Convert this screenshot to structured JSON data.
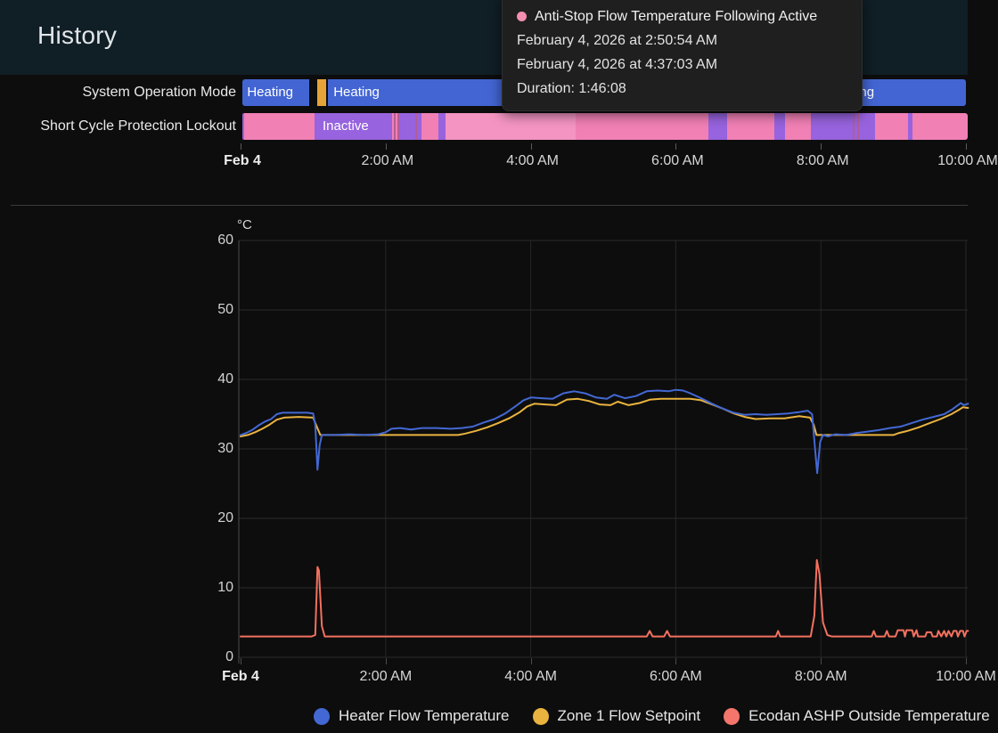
{
  "header": {
    "title": "History"
  },
  "tooltip": {
    "title": "Anti-Stop Flow Temperature Following Active",
    "dot_color": "#f48fb1",
    "start_time": "February 4, 2026 at 2:50:54 AM",
    "end_time": "February 4, 2026 at 4:37:03 AM",
    "duration": "Duration: 1:46:08"
  },
  "state_colors": {
    "blue": "#4365d3",
    "orange": "#e5a339",
    "pink": "#f180b5",
    "pink_light": "#f494c3",
    "purple": "#9763de",
    "mauve": "#b25d97"
  },
  "timeline": {
    "rows": [
      {
        "label": "System Operation Mode",
        "segments": [
          {
            "start_h": 0.02,
            "end_h": 0.95,
            "color": "blue"
          },
          {
            "start_h": 1.06,
            "end_h": 1.18,
            "color": "orange"
          },
          {
            "start_h": 1.2,
            "end_h": 10.0,
            "color": "blue"
          }
        ],
        "labels": [
          {
            "text": "Heating",
            "offset_h": 0.09
          },
          {
            "text": "Heating",
            "offset_h": 1.28
          },
          {
            "text": "Heating",
            "offset_h": 8.1
          }
        ]
      },
      {
        "label": "Short Cycle Protection Lockout",
        "segments": [
          {
            "start_h": 0.02,
            "end_h": 0.05,
            "color": "purple"
          },
          {
            "start_h": 0.05,
            "end_h": 1.02,
            "color": "pink"
          },
          {
            "start_h": 1.02,
            "end_h": 2.09,
            "color": "purple"
          },
          {
            "start_h": 2.09,
            "end_h": 2.11,
            "color": "pink"
          },
          {
            "start_h": 2.11,
            "end_h": 2.14,
            "color": "mauve"
          },
          {
            "start_h": 2.14,
            "end_h": 2.16,
            "color": "pink"
          },
          {
            "start_h": 2.16,
            "end_h": 2.19,
            "color": "mauve"
          },
          {
            "start_h": 2.19,
            "end_h": 2.41,
            "color": "purple"
          },
          {
            "start_h": 2.41,
            "end_h": 2.43,
            "color": "mauve"
          },
          {
            "start_h": 2.43,
            "end_h": 2.49,
            "color": "purple"
          },
          {
            "start_h": 2.49,
            "end_h": 2.73,
            "color": "pink"
          },
          {
            "start_h": 2.73,
            "end_h": 2.83,
            "color": "purple"
          },
          {
            "start_h": 2.83,
            "end_h": 4.62,
            "color": "pink_light"
          },
          {
            "start_h": 4.62,
            "end_h": 6.45,
            "color": "pink"
          },
          {
            "start_h": 6.45,
            "end_h": 6.71,
            "color": "purple"
          },
          {
            "start_h": 6.71,
            "end_h": 7.36,
            "color": "pink"
          },
          {
            "start_h": 7.36,
            "end_h": 7.51,
            "color": "purple"
          },
          {
            "start_h": 7.51,
            "end_h": 7.86,
            "color": "pink"
          },
          {
            "start_h": 7.86,
            "end_h": 8.44,
            "color": "purple"
          },
          {
            "start_h": 8.44,
            "end_h": 8.46,
            "color": "mauve"
          },
          {
            "start_h": 8.46,
            "end_h": 8.5,
            "color": "purple"
          },
          {
            "start_h": 8.5,
            "end_h": 8.53,
            "color": "mauve"
          },
          {
            "start_h": 8.53,
            "end_h": 8.75,
            "color": "purple"
          },
          {
            "start_h": 8.75,
            "end_h": 9.2,
            "color": "pink"
          },
          {
            "start_h": 9.2,
            "end_h": 9.26,
            "color": "purple"
          },
          {
            "start_h": 9.26,
            "end_h": 10.03,
            "color": "pink"
          }
        ],
        "labels": [
          {
            "text": "Inactive",
            "offset_h": 1.13
          }
        ]
      }
    ],
    "axis_ticks": [
      {
        "h": 0,
        "label": "Feb 4",
        "bold": true
      },
      {
        "h": 2,
        "label": "2:00 AM"
      },
      {
        "h": 4,
        "label": "4:00 AM"
      },
      {
        "h": 6,
        "label": "6:00 AM"
      },
      {
        "h": 8,
        "label": "8:00 AM"
      },
      {
        "h": 10,
        "label": "10:00 AM"
      }
    ]
  },
  "chart_data": {
    "type": "line",
    "title": "",
    "xlabel": "",
    "ylabel": "°C",
    "ylim": [
      0,
      60
    ],
    "y_ticks": [
      0,
      10,
      20,
      30,
      40,
      50,
      60
    ],
    "x_hours_range": [
      0,
      10.05
    ],
    "x_ticks": [
      {
        "h": 0,
        "label": "Feb 4",
        "bold": true
      },
      {
        "h": 2,
        "label": "2:00 AM"
      },
      {
        "h": 4,
        "label": "4:00 AM"
      },
      {
        "h": 6,
        "label": "6:00 AM"
      },
      {
        "h": 8,
        "label": "8:00 AM"
      },
      {
        "h": 10,
        "label": "10:00 AM"
      }
    ],
    "grid": true,
    "legend_position": "bottom",
    "series": [
      {
        "name": "Heater Flow Temperature",
        "color": "#4368d4",
        "points": [
          [
            0.0,
            32.0
          ],
          [
            0.08,
            32.3
          ],
          [
            0.17,
            32.8
          ],
          [
            0.25,
            33.4
          ],
          [
            0.33,
            33.9
          ],
          [
            0.42,
            34.3
          ],
          [
            0.5,
            35.0
          ],
          [
            0.58,
            35.2
          ],
          [
            0.75,
            35.2
          ],
          [
            0.92,
            35.2
          ],
          [
            1.0,
            35.1
          ],
          [
            1.03,
            33.5
          ],
          [
            1.06,
            27.0
          ],
          [
            1.09,
            30.5
          ],
          [
            1.12,
            32.0
          ],
          [
            1.3,
            32.0
          ],
          [
            1.5,
            32.1
          ],
          [
            1.7,
            32.0
          ],
          [
            1.9,
            32.1
          ],
          [
            2.0,
            32.4
          ],
          [
            2.08,
            32.9
          ],
          [
            2.2,
            33.0
          ],
          [
            2.35,
            32.8
          ],
          [
            2.5,
            33.0
          ],
          [
            2.7,
            33.0
          ],
          [
            2.9,
            32.9
          ],
          [
            3.05,
            33.0
          ],
          [
            3.2,
            33.2
          ],
          [
            3.35,
            33.8
          ],
          [
            3.5,
            34.3
          ],
          [
            3.65,
            35.1
          ],
          [
            3.8,
            36.2
          ],
          [
            3.9,
            37.0
          ],
          [
            4.0,
            37.4
          ],
          [
            4.15,
            37.3
          ],
          [
            4.3,
            37.2
          ],
          [
            4.45,
            38.0
          ],
          [
            4.6,
            38.3
          ],
          [
            4.75,
            38.0
          ],
          [
            4.9,
            37.4
          ],
          [
            5.05,
            37.2
          ],
          [
            5.15,
            37.8
          ],
          [
            5.3,
            37.3
          ],
          [
            5.45,
            37.6
          ],
          [
            5.6,
            38.3
          ],
          [
            5.75,
            38.4
          ],
          [
            5.9,
            38.3
          ],
          [
            6.0,
            38.5
          ],
          [
            6.1,
            38.4
          ],
          [
            6.2,
            38.0
          ],
          [
            6.35,
            37.3
          ],
          [
            6.5,
            36.5
          ],
          [
            6.65,
            35.8
          ],
          [
            6.8,
            35.2
          ],
          [
            6.95,
            34.9
          ],
          [
            7.1,
            35.0
          ],
          [
            7.25,
            34.9
          ],
          [
            7.4,
            35.0
          ],
          [
            7.55,
            35.1
          ],
          [
            7.7,
            35.3
          ],
          [
            7.82,
            35.5
          ],
          [
            7.88,
            35.0
          ],
          [
            7.92,
            30.0
          ],
          [
            7.95,
            26.5
          ],
          [
            7.99,
            31.0
          ],
          [
            8.03,
            32.0
          ],
          [
            8.1,
            31.8
          ],
          [
            8.2,
            32.1
          ],
          [
            8.35,
            32.0
          ],
          [
            8.5,
            32.3
          ],
          [
            8.65,
            32.5
          ],
          [
            8.8,
            32.7
          ],
          [
            8.95,
            33.0
          ],
          [
            9.1,
            33.2
          ],
          [
            9.25,
            33.7
          ],
          [
            9.4,
            34.2
          ],
          [
            9.55,
            34.6
          ],
          [
            9.7,
            35.0
          ],
          [
            9.8,
            35.6
          ],
          [
            9.88,
            36.2
          ],
          [
            9.93,
            36.6
          ],
          [
            9.97,
            36.3
          ],
          [
            10.03,
            36.5
          ]
        ]
      },
      {
        "name": "Zone 1 Flow Setpoint",
        "color": "#eab33f",
        "points": [
          [
            0.0,
            31.8
          ],
          [
            0.1,
            32.0
          ],
          [
            0.2,
            32.4
          ],
          [
            0.3,
            32.9
          ],
          [
            0.4,
            33.5
          ],
          [
            0.5,
            34.2
          ],
          [
            0.6,
            34.5
          ],
          [
            0.8,
            34.6
          ],
          [
            1.0,
            34.5
          ],
          [
            1.05,
            33.2
          ],
          [
            1.1,
            32.0
          ],
          [
            1.4,
            32.0
          ],
          [
            1.8,
            32.0
          ],
          [
            2.2,
            32.0
          ],
          [
            2.6,
            32.0
          ],
          [
            3.0,
            32.0
          ],
          [
            3.1,
            32.2
          ],
          [
            3.25,
            32.6
          ],
          [
            3.4,
            33.1
          ],
          [
            3.55,
            33.7
          ],
          [
            3.7,
            34.4
          ],
          [
            3.85,
            35.3
          ],
          [
            3.95,
            36.1
          ],
          [
            4.05,
            36.5
          ],
          [
            4.2,
            36.4
          ],
          [
            4.35,
            36.3
          ],
          [
            4.5,
            37.1
          ],
          [
            4.65,
            37.2
          ],
          [
            4.8,
            36.9
          ],
          [
            4.95,
            36.4
          ],
          [
            5.1,
            36.3
          ],
          [
            5.2,
            36.8
          ],
          [
            5.35,
            36.3
          ],
          [
            5.5,
            36.6
          ],
          [
            5.65,
            37.1
          ],
          [
            5.8,
            37.2
          ],
          [
            6.0,
            37.2
          ],
          [
            6.2,
            37.2
          ],
          [
            6.35,
            37.0
          ],
          [
            6.5,
            36.4
          ],
          [
            6.65,
            35.8
          ],
          [
            6.8,
            35.1
          ],
          [
            6.95,
            34.6
          ],
          [
            7.1,
            34.3
          ],
          [
            7.3,
            34.4
          ],
          [
            7.5,
            34.4
          ],
          [
            7.7,
            34.7
          ],
          [
            7.85,
            34.5
          ],
          [
            7.9,
            33.5
          ],
          [
            7.94,
            32.0
          ],
          [
            8.2,
            32.0
          ],
          [
            8.6,
            32.0
          ],
          [
            9.0,
            32.0
          ],
          [
            9.08,
            32.3
          ],
          [
            9.2,
            32.6
          ],
          [
            9.35,
            33.1
          ],
          [
            9.5,
            33.7
          ],
          [
            9.65,
            34.3
          ],
          [
            9.8,
            35.0
          ],
          [
            9.9,
            35.6
          ],
          [
            9.96,
            36.0
          ],
          [
            10.03,
            35.9
          ]
        ]
      },
      {
        "name": "Ecodan ASHP Outside Temperature",
        "color": "#f3715f",
        "points": [
          [
            0.0,
            3.0
          ],
          [
            0.98,
            3.0
          ],
          [
            1.03,
            3.2
          ],
          [
            1.06,
            13.0
          ],
          [
            1.08,
            12.5
          ],
          [
            1.12,
            4.5
          ],
          [
            1.16,
            3.0
          ],
          [
            2.0,
            3.0
          ],
          [
            3.0,
            3.0
          ],
          [
            4.0,
            3.0
          ],
          [
            5.0,
            3.0
          ],
          [
            5.6,
            3.0
          ],
          [
            5.64,
            3.8
          ],
          [
            5.68,
            3.0
          ],
          [
            5.84,
            3.0
          ],
          [
            5.88,
            3.8
          ],
          [
            5.92,
            3.0
          ],
          [
            6.5,
            3.0
          ],
          [
            7.0,
            3.0
          ],
          [
            7.38,
            3.0
          ],
          [
            7.41,
            3.8
          ],
          [
            7.44,
            3.0
          ],
          [
            7.86,
            3.0
          ],
          [
            7.91,
            6.0
          ],
          [
            7.945,
            14.0
          ],
          [
            7.98,
            12.0
          ],
          [
            8.03,
            5.0
          ],
          [
            8.09,
            3.2
          ],
          [
            8.15,
            3.0
          ],
          [
            8.7,
            3.0
          ],
          [
            8.73,
            3.8
          ],
          [
            8.76,
            3.0
          ],
          [
            8.88,
            3.0
          ],
          [
            8.91,
            3.8
          ],
          [
            8.94,
            3.0
          ],
          [
            9.03,
            3.0
          ],
          [
            9.06,
            3.9
          ],
          [
            9.14,
            3.9
          ],
          [
            9.16,
            3.0
          ],
          [
            9.18,
            3.9
          ],
          [
            9.26,
            3.9
          ],
          [
            9.28,
            3.0
          ],
          [
            9.32,
            3.9
          ],
          [
            9.34,
            3.0
          ],
          [
            9.44,
            3.0
          ],
          [
            9.46,
            3.6
          ],
          [
            9.52,
            3.6
          ],
          [
            9.54,
            3.0
          ],
          [
            9.6,
            3.0
          ],
          [
            9.62,
            3.8
          ],
          [
            9.66,
            3.0
          ],
          [
            9.7,
            3.8
          ],
          [
            9.73,
            3.0
          ],
          [
            9.76,
            3.8
          ],
          [
            9.8,
            3.0
          ],
          [
            9.83,
            3.8
          ],
          [
            9.87,
            3.8
          ],
          [
            9.89,
            3.0
          ],
          [
            9.92,
            3.8
          ],
          [
            9.96,
            3.8
          ],
          [
            9.98,
            3.0
          ],
          [
            10.01,
            3.8
          ],
          [
            10.03,
            3.8
          ]
        ]
      }
    ]
  },
  "legend": {
    "items": [
      {
        "label": "Heater Flow Temperature",
        "color": "#4368d4"
      },
      {
        "label": "Zone 1 Flow Setpoint",
        "color": "#eab33f"
      },
      {
        "label": "Ecodan ASHP Outside Temperature",
        "color": "#f4756b"
      }
    ]
  }
}
